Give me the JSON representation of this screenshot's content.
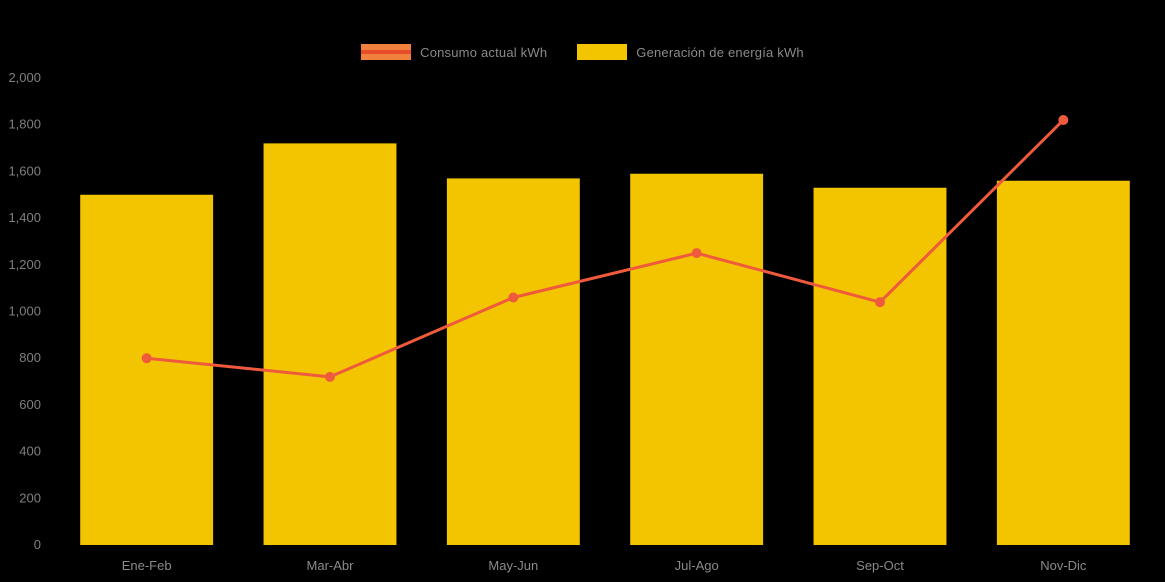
{
  "chart_data": {
    "type": "bar",
    "subtype": "bar-with-line-overlay",
    "categories": [
      "Ene-Feb",
      "Mar-Abr",
      "May-Jun",
      "Jul-Ago",
      "Sep-Oct",
      "Nov-Dic"
    ],
    "series": [
      {
        "name": "Consumo actual kWh",
        "render": "line",
        "color": "#F05A3C",
        "point_color": "#F05A3C",
        "values": [
          800,
          720,
          1060,
          1250,
          1040,
          1820
        ]
      },
      {
        "name": "Generación de energía kWh",
        "render": "bar",
        "color": "#F2C500",
        "values": [
          1500,
          1720,
          1570,
          1590,
          1530,
          1560
        ]
      }
    ],
    "title": "",
    "xlabel": "",
    "ylabel": "",
    "ylim": [
      0,
      2000
    ],
    "ytick_step": 200,
    "ytick_labels": [
      "0",
      "200",
      "400",
      "600",
      "800",
      "1,000",
      "1,200",
      "1,400",
      "1,600",
      "1,800",
      "2,000"
    ],
    "grid": false,
    "legend_position": "top-center",
    "background_color": "#000000",
    "axis_text_color": "#7f7f7f"
  },
  "legend": {
    "items": [
      {
        "id": "consumo",
        "label": "Consumo actual kWh",
        "swatch_fill": "#F0823E",
        "swatch_stripe": "#E84C2B"
      },
      {
        "id": "generacion",
        "label": "Generación de energía kWh",
        "swatch_fill": "#F2C500",
        "swatch_stripe": ""
      }
    ]
  }
}
